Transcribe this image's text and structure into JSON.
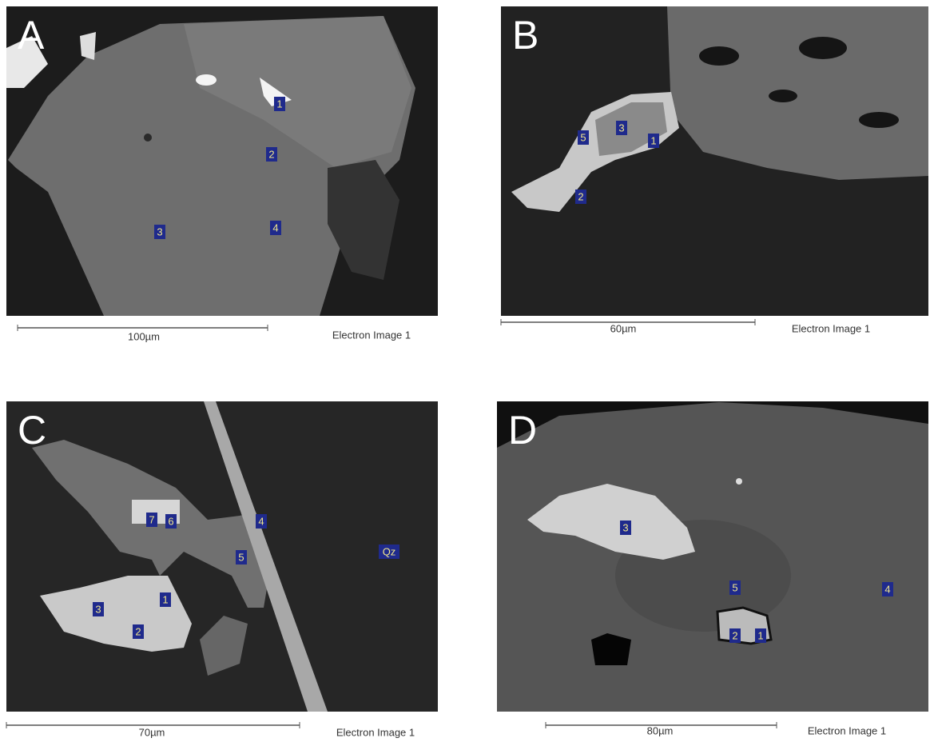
{
  "panels": [
    {
      "letter": "A",
      "labels": [
        "1",
        "2",
        "3",
        "4"
      ],
      "scale": "100µm",
      "caption": "Electron Image 1"
    },
    {
      "letter": "B",
      "labels": [
        "5",
        "3",
        "1",
        "2"
      ],
      "scale": "60µm",
      "caption": "Electron Image 1"
    },
    {
      "letter": "C",
      "labels": [
        "7",
        "6",
        "4",
        "5",
        "Qz",
        "3",
        "1",
        "2"
      ],
      "scale": "70µm",
      "caption": "Electron Image 1"
    },
    {
      "letter": "D",
      "labels": [
        "3",
        "5",
        "4",
        "2",
        "1"
      ],
      "scale": "80µm",
      "caption": "Electron Image 1"
    }
  ]
}
